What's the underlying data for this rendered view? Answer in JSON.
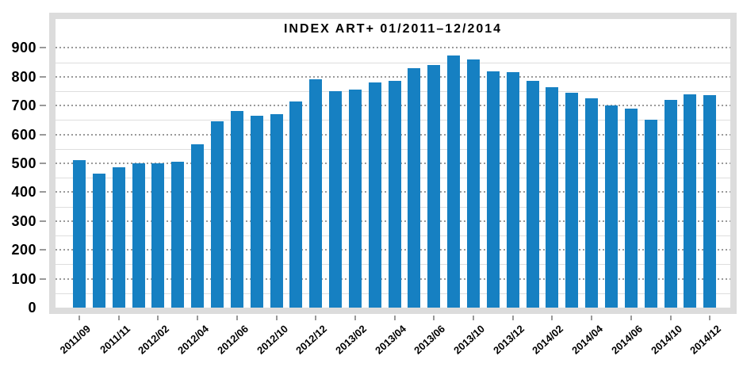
{
  "chart_data": {
    "type": "bar",
    "title": "INDEX ART+ 01/2011–12/2014",
    "x_tick_labels": [
      "2011/09",
      "2011/11",
      "2012/02",
      "2012/04",
      "2012/06",
      "2012/10",
      "2012/12",
      "2013/02",
      "2013/04",
      "2013/06",
      "2013/10",
      "2013/12",
      "2014/02",
      "2014/04",
      "2014/06",
      "2014/10",
      "2014/12"
    ],
    "x_label_every_n_bars": 2,
    "values": [
      510,
      465,
      485,
      500,
      500,
      505,
      565,
      645,
      680,
      665,
      670,
      715,
      790,
      750,
      755,
      780,
      785,
      830,
      840,
      875,
      860,
      820,
      815,
      785,
      765,
      745,
      725,
      700,
      690,
      650,
      720,
      740,
      735
    ],
    "ylim": [
      0,
      1000
    ],
    "y_tick_labels": [
      0,
      100,
      200,
      300,
      400,
      500,
      600,
      700,
      800,
      900
    ],
    "grid": {
      "major_interval": 100,
      "major_style": "dotted",
      "minor_interval": 50,
      "minor_style": "solid"
    },
    "legend": "none"
  },
  "colors": {
    "bar": "#1680c2",
    "frame": "#dcdcdc",
    "major_grid": "#9a9a9a",
    "minor_grid": "#dedede",
    "tick": "#999999",
    "text": "#000000",
    "background": "#ffffff"
  }
}
